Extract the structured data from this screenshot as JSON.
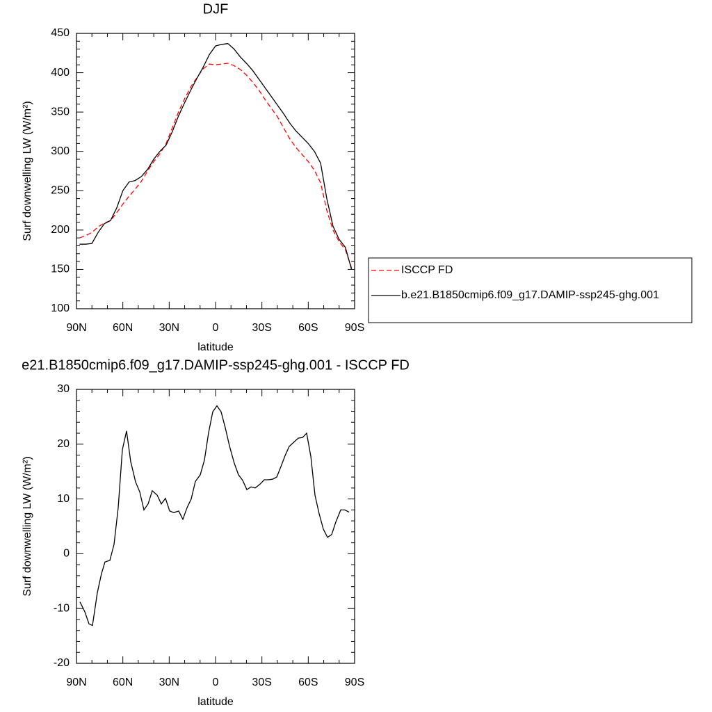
{
  "chart_data": [
    {
      "type": "line",
      "title": "DJF",
      "xlabel": "latitude",
      "ylabel": "Surf downwelling LW (W/m²)",
      "x": [
        88,
        84,
        80,
        76,
        72,
        68,
        64,
        60,
        56,
        52,
        48,
        44,
        40,
        36,
        32,
        28,
        24,
        20,
        16,
        12,
        8,
        4,
        0,
        -4,
        -8,
        -12,
        -16,
        -20,
        -24,
        -28,
        -32,
        -36,
        -40,
        -44,
        -48,
        -52,
        -56,
        -60,
        -64,
        -68,
        -72,
        -76,
        -80,
        -84,
        -88
      ],
      "series": [
        {
          "name": "ISCCP FD",
          "color": "#ff0000",
          "line_style": "dashed",
          "values": [
            190,
            193,
            197,
            204,
            209,
            212,
            222,
            233,
            243,
            252,
            262,
            275,
            287,
            297,
            310,
            330,
            350,
            367,
            382,
            394,
            405,
            411,
            410,
            411,
            412,
            409,
            404,
            397,
            388,
            378,
            366,
            355,
            344,
            330,
            316,
            305,
            296,
            287,
            276,
            260,
            225,
            200,
            185,
            175,
            152
          ]
        },
        {
          "name": "b.e21.B1850cmip6.f09_g17.DAMIP-ssp245-ghg.001",
          "color": "#000000",
          "line_style": "solid",
          "values": [
            182,
            182,
            183,
            197,
            208,
            212,
            228,
            250,
            261,
            263,
            268,
            277,
            290,
            300,
            308,
            325,
            345,
            362,
            378,
            393,
            407,
            423,
            434,
            436,
            437,
            430,
            420,
            412,
            403,
            392,
            381,
            370,
            359,
            348,
            336,
            326,
            318,
            310,
            300,
            285,
            240,
            205,
            188,
            178,
            150
          ]
        }
      ],
      "xlim": [
        90,
        -90
      ],
      "xticks": [
        {
          "value": 90,
          "label": "90N"
        },
        {
          "value": 60,
          "label": "60N"
        },
        {
          "value": 30,
          "label": "30N"
        },
        0,
        {
          "value": -30,
          "label": "30S"
        },
        {
          "value": -60,
          "label": "60S"
        },
        {
          "value": -90,
          "label": "90S"
        }
      ],
      "ylim": [
        100,
        450
      ],
      "yticks": [
        100,
        150,
        200,
        250,
        300,
        350,
        400,
        450
      ],
      "legend": "right"
    },
    {
      "type": "line",
      "title": "e21.B1850cmip6.f09_g17.DAMIP-ssp245-ghg.001 - ISCCP FD",
      "xlabel": "latitude",
      "ylabel": "Surf downwelling LW (W/m²)",
      "x": [
        87.75,
        84.6,
        81.9,
        79.65,
        76.5,
        73.8,
        71.55,
        68.4,
        65.7,
        63,
        60.3,
        57.6,
        54.9,
        51.75,
        49.05,
        46.35,
        43.65,
        40.95,
        37.8,
        35.1,
        32.4,
        29.7,
        27,
        23.85,
        21.15,
        18.45,
        15.75,
        13.05,
        9.9,
        7.2,
        4.5,
        1.8,
        -0.9,
        -3.6,
        -6.3,
        -9,
        -12.15,
        -14.85,
        -17.55,
        -20.25,
        -22.95,
        -25.65,
        -28.8,
        -31.5,
        -34.2,
        -36.9,
        -39.6,
        -42.3,
        -45,
        -47.7,
        -50.85,
        -53.55,
        -56.25,
        -58.95,
        -61.65,
        -64.35,
        -67.05,
        -69.75,
        -72.45,
        -75.15,
        -77.85,
        -81,
        -83.7,
        -86.4
      ],
      "values": [
        -8.8,
        -10.6,
        -12.8,
        -13.1,
        -7.1,
        -3.6,
        -1.5,
        -1.2,
        1.7,
        8.4,
        19.0,
        22.4,
        16.8,
        13.1,
        11.3,
        8.0,
        9.1,
        11.5,
        10.7,
        9.1,
        10.1,
        7.8,
        7.5,
        7.8,
        6.3,
        8.4,
        10.0,
        13.2,
        14.4,
        17.1,
        22.1,
        25.9,
        27.0,
        25.9,
        23.0,
        19.7,
        16.5,
        14.4,
        13.4,
        11.7,
        12.2,
        12.0,
        12.7,
        13.5,
        13.5,
        13.6,
        14.0,
        15.9,
        17.9,
        19.6,
        20.4,
        21.1,
        21.2,
        22.0,
        17.8,
        10.7,
        7.3,
        4.5,
        3.0,
        3.5,
        5.8,
        8.0,
        8.0,
        7.6
      ],
      "color": "#000000",
      "xlim": [
        90,
        -90
      ],
      "xticks": [
        {
          "value": 90,
          "label": "90N"
        },
        {
          "value": 60,
          "label": "60N"
        },
        {
          "value": 30,
          "label": "30N"
        },
        0,
        {
          "value": -30,
          "label": "30S"
        },
        {
          "value": -60,
          "label": "60S"
        },
        {
          "value": -90,
          "label": "90S"
        }
      ],
      "ylim": [
        -20,
        30
      ],
      "yticks": [
        -20,
        -10,
        0,
        10,
        20,
        30
      ]
    }
  ]
}
